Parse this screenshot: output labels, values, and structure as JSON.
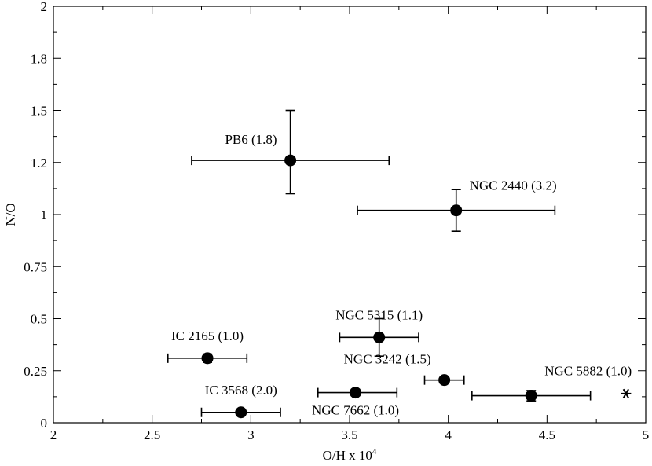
{
  "chart_data": {
    "type": "scatter",
    "title": "",
    "xlabel": "O/H x 10",
    "xlabel_sup": "4",
    "ylabel": "N/O",
    "xlim": [
      2,
      5
    ],
    "ylim": [
      0,
      2
    ],
    "xticks": [
      2,
      2.5,
      3,
      3.5,
      4,
      4.5,
      5
    ],
    "xtick_labels": [
      "2",
      "2.5",
      "3",
      "3.5",
      "4",
      "4.5",
      "5"
    ],
    "yticks": [
      0,
      0.25,
      0.5,
      0.75,
      1,
      1.25,
      1.5,
      1.75,
      2
    ],
    "ytick_labels": [
      "0",
      "0.25",
      "0.5",
      "0.75",
      "1",
      "1.2",
      "1.5",
      "1.8",
      "2"
    ],
    "grid": false,
    "series": [
      {
        "marker": "filled-circle",
        "color": "#000000",
        "points": [
          {
            "label": "PB6 (1.8)",
            "x": 3.2,
            "y": 1.26,
            "xerr": [
              2.7,
              3.7
            ],
            "yerr": [
              1.1,
              1.5
            ],
            "label_pos": "upper-left"
          },
          {
            "label": "NGC 2440 (3.2)",
            "x": 4.04,
            "y": 1.02,
            "xerr": [
              3.54,
              4.54
            ],
            "yerr": [
              0.92,
              1.12
            ],
            "label_pos": "upper-right"
          },
          {
            "label": "NGC 5315 (1.1)",
            "x": 3.65,
            "y": 0.41,
            "xerr": [
              3.45,
              3.85
            ],
            "yerr": [
              0.32,
              0.5
            ],
            "label_pos": "above"
          },
          {
            "label": "IC 2165 (1.0)",
            "x": 2.78,
            "y": 0.31,
            "xerr": [
              2.58,
              2.98
            ],
            "yerr": [
              0.29,
              0.33
            ],
            "label_pos": "above"
          },
          {
            "label": "NGC 3242 (1.5)",
            "x": 3.98,
            "y": 0.205,
            "xerr": [
              3.88,
              4.08
            ],
            "yerr": [
              0.19,
              0.22
            ],
            "label_pos": "upper-left"
          },
          {
            "label": "IC 3568 (2.0)",
            "x": 2.95,
            "y": 0.05,
            "xerr": [
              2.75,
              3.15
            ],
            "yerr": [
              0.035,
              0.065
            ],
            "label_pos": "above"
          },
          {
            "label": "NGC 7662 (1.0)",
            "x": 3.53,
            "y": 0.145,
            "xerr": [
              3.34,
              3.74
            ],
            "yerr": [
              0.13,
              0.16
            ],
            "label_pos": "below"
          },
          {
            "label": "NGC 5882 (1.0)",
            "x": 4.42,
            "y": 0.13,
            "xerr": [
              4.12,
              4.72
            ],
            "yerr": [
              0.105,
              0.155
            ],
            "label_pos": "upper-right"
          }
        ]
      },
      {
        "marker": "asterisk",
        "color": "#000000",
        "points": [
          {
            "x": 4.9,
            "y": 0.14
          }
        ]
      }
    ]
  }
}
